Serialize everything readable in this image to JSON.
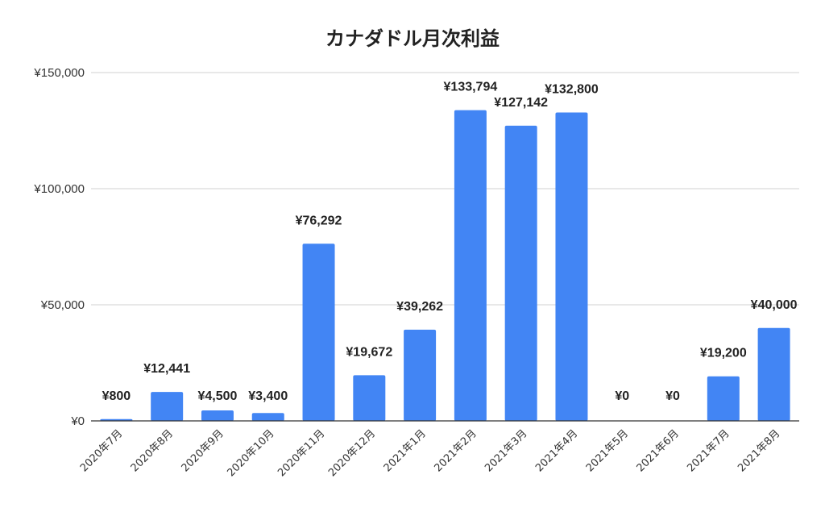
{
  "chart_data": {
    "type": "bar",
    "title": "カナダドル月次利益",
    "xlabel": "",
    "ylabel": "",
    "categories": [
      "2020年7月",
      "2020年8月",
      "2020年9月",
      "2020年10月",
      "2020年11月",
      "2020年12月",
      "2021年1月",
      "2021年2月",
      "2021年3月",
      "2021年4月",
      "2021年5月",
      "2021年6月",
      "2021年7月",
      "2021年8月"
    ],
    "values": [
      800,
      12441,
      4500,
      3400,
      76292,
      19672,
      39262,
      133794,
      127142,
      132800,
      0,
      0,
      19200,
      40000
    ],
    "data_labels": [
      "¥800",
      "¥12,441",
      "¥4,500",
      "¥3,400",
      "¥76,292",
      "¥19,672",
      "¥39,262",
      "¥133,794",
      "¥127,142",
      "¥132,800",
      "¥0",
      "¥0",
      "¥19,200",
      "¥40,000"
    ],
    "ylim": [
      0,
      150000
    ],
    "yticks": [
      0,
      50000,
      100000,
      150000
    ],
    "ytick_labels": [
      "¥0",
      "¥50,000",
      "¥100,000",
      "¥150,000"
    ],
    "grid": true,
    "legend": "none",
    "bar_color": "#4285f4"
  }
}
